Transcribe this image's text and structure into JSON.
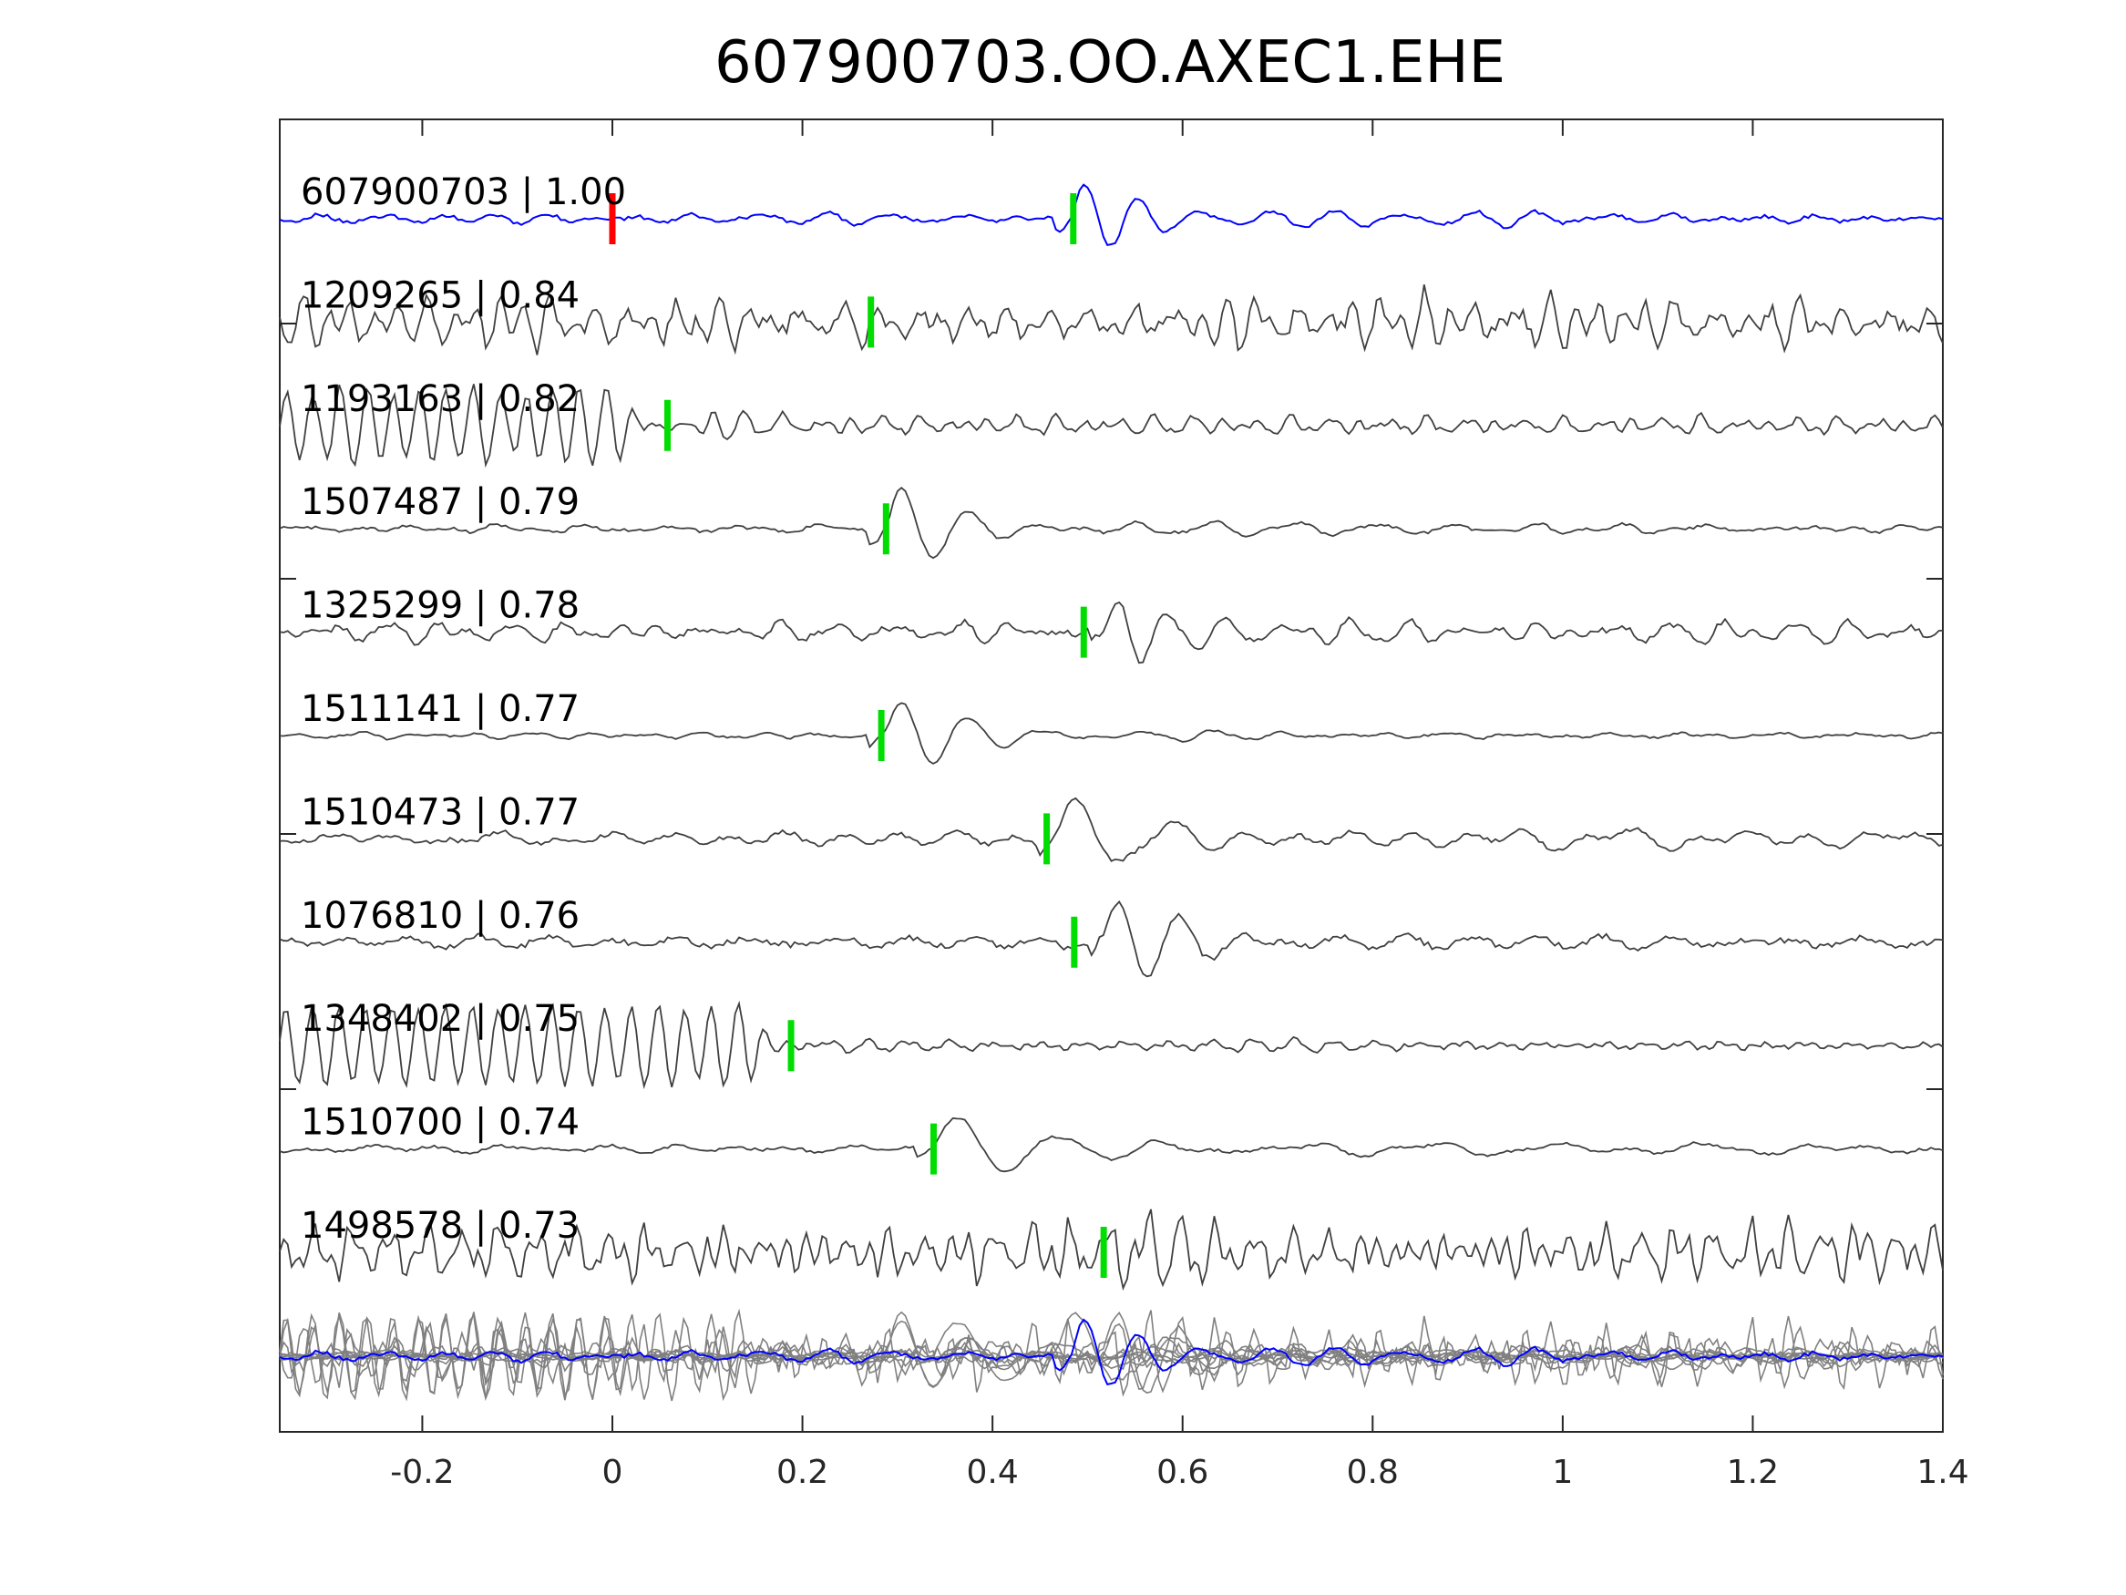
{
  "chart_data": {
    "type": "line",
    "title": "607900703.OO.AXEC1.EHE",
    "xlabel": "",
    "ylabel": "",
    "xlim": [
      -0.35,
      1.4
    ],
    "x_ticks": [
      -0.2,
      0,
      0.2,
      0.4,
      0.6,
      0.8,
      1,
      1.2,
      1.4
    ],
    "x_tick_labels": [
      "-0.2",
      "0",
      "0.2",
      "0.4",
      "0.6",
      "0.8",
      "1",
      "1.2",
      "1.4"
    ],
    "grid": false,
    "colors": {
      "template": "#0000ff",
      "match": "#404040",
      "stack": "#808080",
      "origin_marker": "#ff0000",
      "pick_marker": "#00dd00",
      "axes": "#262626"
    },
    "traces": [
      {
        "name": "607900703",
        "cc": "1.00",
        "label": "607900703 | 1.00",
        "role": "template",
        "pick": 0.485,
        "arrival": 0.485,
        "amp": 0.9,
        "noise": 0.15,
        "period": 0.052,
        "origin_marker": 0.0
      },
      {
        "name": "1209265",
        "cc": "0.84",
        "label": "1209265 | 0.84",
        "role": "match",
        "pick": 0.272,
        "arrival": 0.49,
        "amp": 0.45,
        "noise": 0.6,
        "period": 0.03
      },
      {
        "name": "1193163",
        "cc": "0.82",
        "label": "1193163 | 0.82",
        "role": "match",
        "pick": 0.058,
        "arrival": 0.1,
        "amp": 0.2,
        "noise": 0.2,
        "period": 0.03,
        "early_osc": 0.9
      },
      {
        "name": "1507487",
        "cc": "0.79",
        "label": "1507487 | 0.79",
        "role": "match",
        "pick": 0.288,
        "arrival": 0.29,
        "amp": 0.9,
        "noise": 0.12,
        "period": 0.065
      },
      {
        "name": "1325299",
        "cc": "0.78",
        "label": "1325299 | 0.78",
        "role": "match",
        "pick": 0.496,
        "arrival": 0.52,
        "amp": 0.8,
        "noise": 0.22,
        "period": 0.05
      },
      {
        "name": "1511141",
        "cc": "0.77",
        "label": "1511141 | 0.77",
        "role": "match",
        "pick": 0.283,
        "arrival": 0.29,
        "amp": 0.9,
        "noise": 0.08,
        "period": 0.065
      },
      {
        "name": "1510473",
        "cc": "0.77",
        "label": "1510473 | 0.77",
        "role": "match",
        "pick": 0.457,
        "arrival": 0.47,
        "amp": 0.85,
        "noise": 0.18,
        "period": 0.09
      },
      {
        "name": "1076810",
        "cc": "0.76",
        "label": "1076810 | 0.76",
        "role": "match",
        "pick": 0.486,
        "arrival": 0.52,
        "amp": 0.9,
        "noise": 0.25,
        "period": 0.06
      },
      {
        "name": "1348402",
        "cc": "0.75",
        "label": "1348402 | 0.75",
        "role": "match",
        "pick": 0.188,
        "arrival": 0.2,
        "amp": 0.1,
        "noise": 0.12,
        "period": 0.03,
        "early_osc": 1.0
      },
      {
        "name": "1510700",
        "cc": "0.74",
        "label": "1510700 | 0.74",
        "role": "match",
        "pick": 0.338,
        "arrival": 0.34,
        "amp": 0.9,
        "noise": 0.12,
        "period": 0.1
      },
      {
        "name": "1498578",
        "cc": "0.73",
        "label": "1498578 | 0.73",
        "role": "match",
        "pick": 0.517,
        "arrival": 0.56,
        "amp": 0.45,
        "noise": 0.6,
        "period": 0.03
      }
    ],
    "overlay": {
      "description": "all traces overlaid",
      "includes_template": true
    }
  }
}
